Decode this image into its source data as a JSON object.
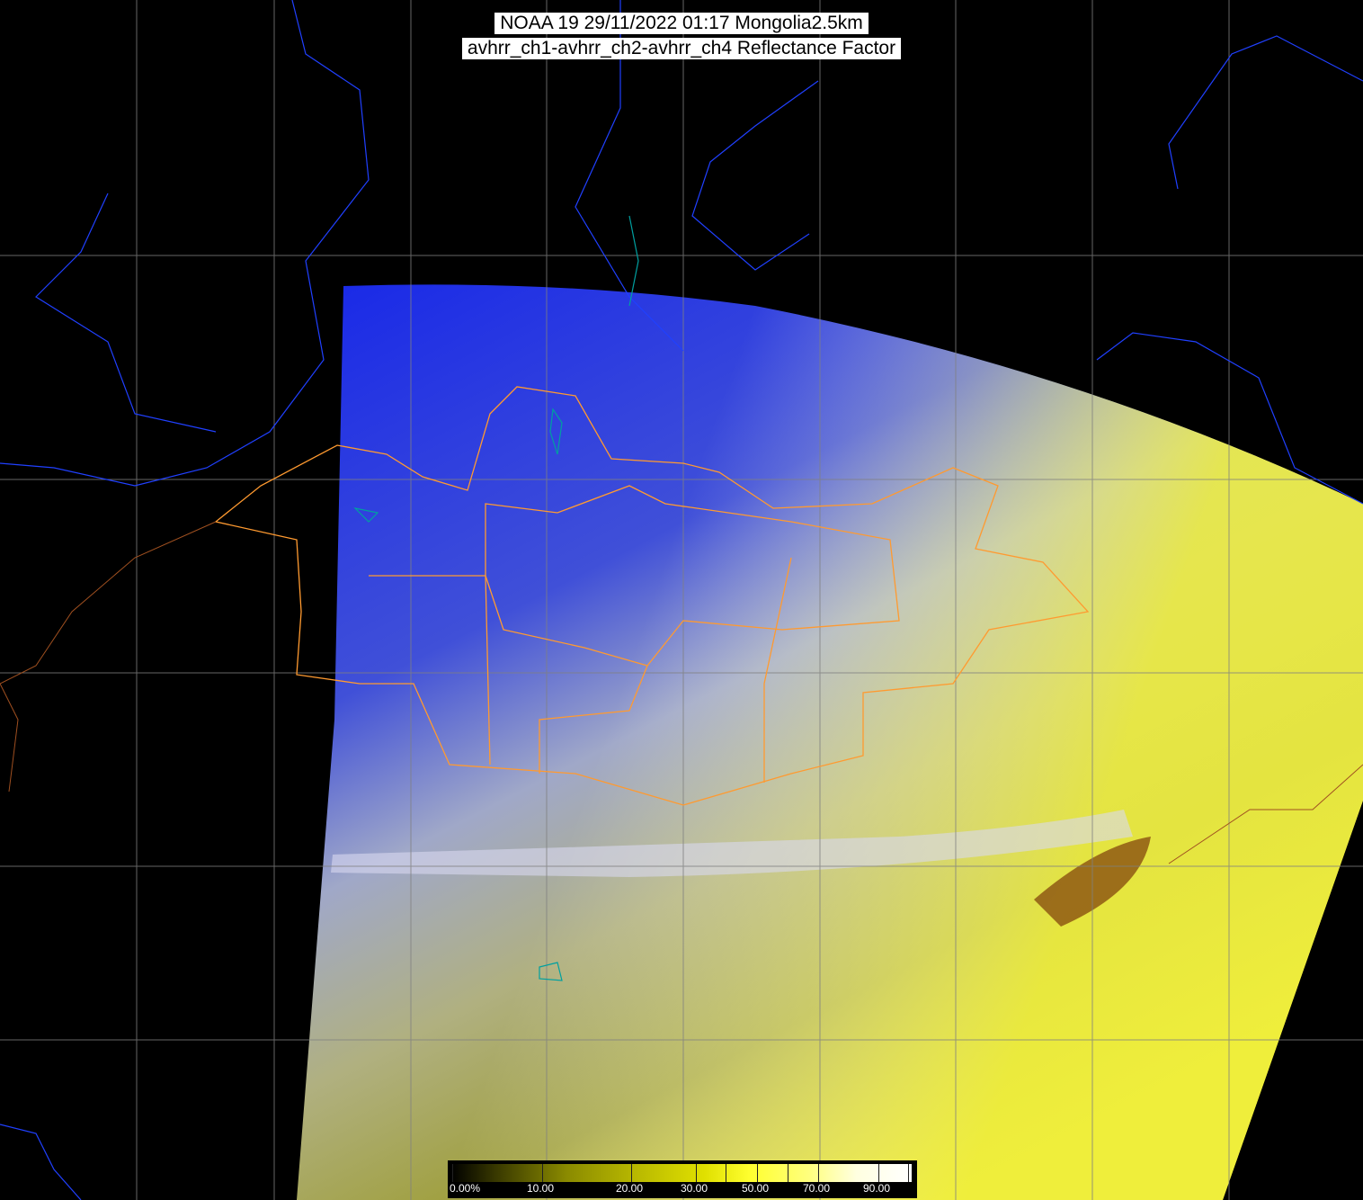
{
  "title": {
    "line1": "NOAA 19 29/11/2022 01:17 Mongolia2.5km",
    "line2": "avhrr_ch1-avhrr_ch2-avhrr_ch4 Reflectance Factor"
  },
  "colorbar": {
    "labels": [
      "0.00%",
      "10.00",
      "20.00",
      "30.00",
      "50.00",
      "70.00",
      "90.00"
    ]
  },
  "colors": {
    "background": "#000000",
    "grid": "#808080",
    "coastline": "#2040ff",
    "province_border": "#ff9a30",
    "lakes": "#00a0a0",
    "swath_north": "#2030e0",
    "swath_south": "#f0f020"
  }
}
